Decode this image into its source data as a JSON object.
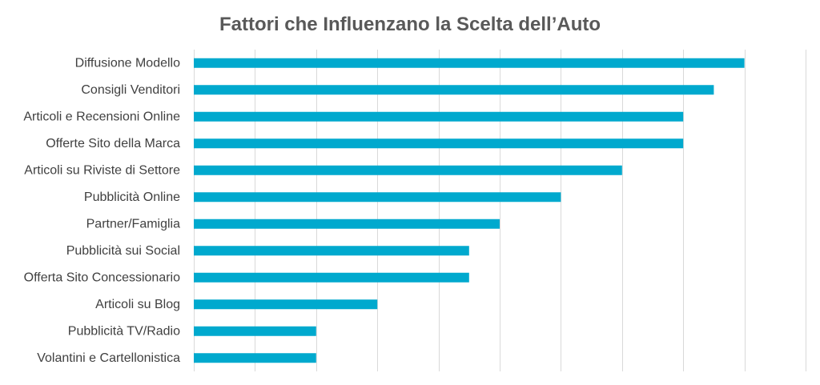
{
  "chart_data": {
    "type": "bar",
    "orientation": "horizontal",
    "title": "Fattori che Influenzano la Scelta dell’Auto",
    "xlabel": "",
    "ylabel": "",
    "categories": [
      "Diffusione Modello",
      "Consigli Venditori",
      "Articoli e Recensioni Online",
      "Offerte Sito della Marca",
      "Articoli su Riviste di Settore",
      "Pubblicità Online",
      "Partner/Famiglia",
      "Pubblicità sui Social",
      "Offerta Sito Concessionario",
      "Articoli su Blog",
      "Pubblicità TV/Radio",
      "Volantini e Cartellonistica"
    ],
    "values": [
      9,
      8.5,
      8,
      8,
      7,
      6,
      5,
      4.5,
      4.5,
      3,
      2,
      2
    ],
    "xlim": [
      0,
      10
    ],
    "grid": true,
    "bar_color": "#00A9CE",
    "grid_color": "#D9D9D9",
    "title_color": "#595959",
    "label_color": "#404040"
  }
}
